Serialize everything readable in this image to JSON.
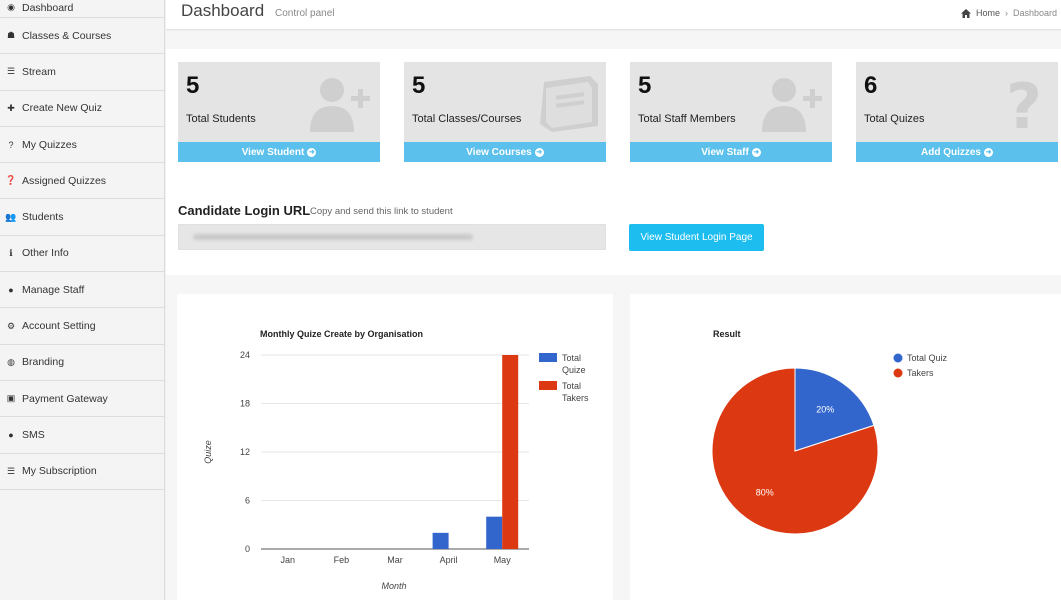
{
  "sidebar": {
    "items": [
      {
        "label": "Dashboard",
        "icon": "dashboard-icon",
        "glyph": "◉"
      },
      {
        "label": "Classes & Courses",
        "icon": "graduation-cap-icon",
        "glyph": "☗"
      },
      {
        "label": "Stream",
        "icon": "list-icon",
        "glyph": "☰"
      },
      {
        "label": "Create New Quiz",
        "icon": "plus-icon",
        "glyph": "✚"
      },
      {
        "label": "My Quizzes",
        "icon": "question-icon",
        "glyph": "?"
      },
      {
        "label": "Assigned Quizzes",
        "icon": "question-circle-icon",
        "glyph": "❓"
      },
      {
        "label": "Students",
        "icon": "users-icon",
        "glyph": "👥"
      },
      {
        "label": "Other Info",
        "icon": "info-icon",
        "glyph": "ℹ"
      },
      {
        "label": "Manage Staff",
        "icon": "user-icon",
        "glyph": "●"
      },
      {
        "label": "Account Setting",
        "icon": "gear-icon",
        "glyph": "⚙"
      },
      {
        "label": "Branding",
        "icon": "globe-icon",
        "glyph": "◍"
      },
      {
        "label": "Payment Gateway",
        "icon": "money-icon",
        "glyph": "▣"
      },
      {
        "label": "SMS",
        "icon": "comment-icon",
        "glyph": "●"
      },
      {
        "label": "My Subscription",
        "icon": "list-icon",
        "glyph": "☰"
      }
    ]
  },
  "header": {
    "title": "Dashboard",
    "subtitle": "Control panel",
    "breadcrumb": {
      "home": "Home",
      "current": "Dashboard",
      "home_icon": "home-icon"
    }
  },
  "stats": [
    {
      "value": "5",
      "label": "Total Students",
      "link": "View Student",
      "icon": "user-plus-icon"
    },
    {
      "value": "5",
      "label": "Total Classes/Courses",
      "link": "View Courses",
      "icon": "book-icon"
    },
    {
      "value": "5",
      "label": "Total Staff Members",
      "link": "View Staff",
      "icon": "user-plus-icon"
    },
    {
      "value": "6",
      "label": "Total Quizes",
      "link": "Add Quizzes",
      "icon": "question-icon"
    }
  ],
  "candidate": {
    "title": "Candidate Login URL",
    "subtitle": "Copy and send this link to student",
    "button": "View Student Login Page"
  },
  "colors": {
    "accent": "#5bc0ec",
    "button": "#1ebdf0",
    "series_quiz": "#3366cc",
    "series_takers": "#dc3912"
  },
  "chart_data": [
    {
      "type": "bar",
      "title": "Monthly Quize Create by Organisation",
      "xlabel": "Month",
      "ylabel": "Quize",
      "categories": [
        "Jan",
        "Feb",
        "Mar",
        "April",
        "May"
      ],
      "series": [
        {
          "name": "Total Quize",
          "values": [
            0,
            0,
            0,
            2,
            4
          ],
          "color": "#3366cc"
        },
        {
          "name": "Total Takers",
          "values": [
            0,
            0,
            0,
            0,
            24
          ],
          "color": "#dc3912"
        }
      ],
      "yticks": [
        0,
        6,
        12,
        18,
        24
      ],
      "ylim": [
        0,
        24
      ],
      "legend": "right"
    },
    {
      "type": "pie",
      "title": "Result",
      "labels": [
        "Total Quiz",
        "Takers"
      ],
      "values": [
        20,
        80
      ],
      "value_labels": [
        "20%",
        "80%"
      ],
      "colors": [
        "#3366cc",
        "#dc3912"
      ],
      "legend": "top-right"
    }
  ]
}
